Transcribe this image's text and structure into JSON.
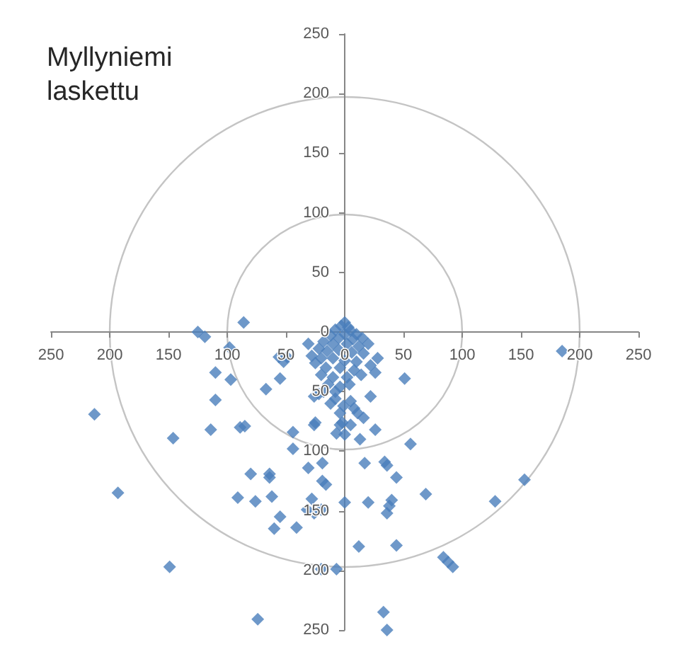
{
  "chart_data": {
    "type": "scatter",
    "title": "Myllyniemi laskettu",
    "series": [
      {
        "color": "#4a7ebb",
        "x": [
          -125,
          -119,
          -86,
          -98,
          -110,
          -97,
          -67,
          -110,
          -213,
          -146,
          -114,
          -89,
          -85,
          -44,
          -26,
          -56,
          -52,
          -55,
          -31,
          -44,
          -31,
          -19,
          -80,
          -64,
          -64,
          -19,
          -16,
          -91,
          -76,
          -62,
          -28,
          -32,
          -26,
          -20,
          -55,
          -60,
          -41,
          -193,
          -149,
          -74,
          -20,
          -7,
          0,
          185,
          28,
          26,
          51,
          22,
          8,
          11,
          16,
          26,
          -4,
          -7,
          0,
          13,
          56,
          17,
          34,
          36,
          44,
          20,
          40,
          38,
          36,
          69,
          128,
          153,
          12,
          44,
          84,
          88,
          92,
          33,
          36,
          -49,
          -26,
          -22,
          -8,
          -12,
          -25,
          5,
          -1,
          -4,
          -2,
          5,
          0,
          -3,
          3,
          -8,
          5,
          10,
          -12,
          0,
          -5,
          7,
          15,
          -18,
          -10,
          2,
          12,
          20,
          -22,
          -15,
          -5,
          6,
          16,
          -20,
          -10,
          0,
          10,
          -25,
          -16,
          -4,
          8,
          -20,
          -10,
          2,
          -14,
          -4,
          -18,
          -8,
          4,
          14,
          -28,
          22
        ],
        "values": [
          0,
          -4,
          8,
          -13,
          -34,
          -40,
          -48,
          -57,
          -69,
          -89,
          -82,
          -80,
          -79,
          -84,
          -78,
          -21,
          -25,
          -39,
          -10,
          -98,
          -114,
          -110,
          -119,
          -119,
          -122,
          -125,
          -128,
          -139,
          -142,
          -138,
          -140,
          -149,
          -152,
          -149,
          -155,
          -165,
          -164,
          -135,
          -197,
          -241,
          -199,
          -199,
          -143,
          -16,
          -22,
          -34,
          -39,
          -54,
          -64,
          -68,
          -72,
          -82,
          -78,
          -85,
          -86,
          -90,
          -94,
          -110,
          -109,
          -112,
          -122,
          -143,
          -141,
          -146,
          -152,
          -136,
          -142,
          -124,
          -180,
          -179,
          -189,
          -193,
          -197,
          -235,
          -250,
          -21,
          -54,
          -52,
          -50,
          -60,
          -76,
          -58,
          -62,
          -68,
          -76,
          -78,
          8,
          5,
          4,
          2,
          1,
          -2,
          -3,
          -2,
          -5,
          -6,
          -5,
          -8,
          -10,
          -10,
          -12,
          -10,
          -14,
          -16,
          -15,
          -17,
          -18,
          -22,
          -22,
          -24,
          -25,
          -26,
          -30,
          -30,
          -32,
          -36,
          -38,
          -38,
          -44,
          -46,
          -50,
          -56,
          -44,
          -36,
          -20,
          -28
        ]
      }
    ],
    "xlim": [
      -250,
      250
    ],
    "ylim": [
      -250,
      250
    ],
    "xticks": [
      {
        "value": -250,
        "label": "250"
      },
      {
        "value": -200,
        "label": "200"
      },
      {
        "value": -150,
        "label": "150"
      },
      {
        "value": -100,
        "label": "100"
      },
      {
        "value": -50,
        "label": "50"
      },
      0,
      50,
      100,
      150,
      200,
      250
    ],
    "yticks": [
      {
        "value": -250,
        "label": "250"
      },
      {
        "value": -200,
        "label": "200"
      },
      {
        "value": -150,
        "label": "150"
      },
      {
        "value": -100,
        "label": "100"
      },
      {
        "value": -50,
        "label": "50"
      },
      0,
      50,
      100,
      150,
      200,
      250
    ],
    "marker": "diamond"
  }
}
